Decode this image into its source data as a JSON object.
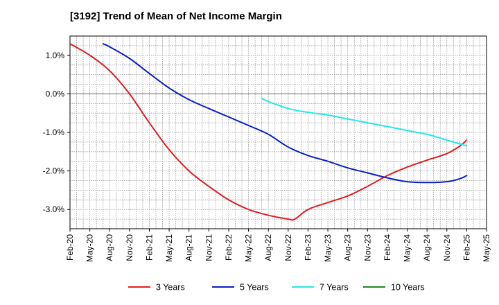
{
  "chart_data": {
    "type": "line",
    "title": "[3192]  Trend of Mean of Net Income Margin",
    "xlabel": "",
    "ylabel": "",
    "ylim": [
      -3.5,
      1.5
    ],
    "yticks": [
      1.0,
      0.0,
      -1.0,
      -2.0,
      -3.0
    ],
    "ytick_labels": [
      "1.0%",
      "0.0%",
      "-1.0%",
      "-2.0%",
      "-3.0%"
    ],
    "x_range": [
      "2020-02",
      "2025-05"
    ],
    "x_tick_labels": [
      "Feb-20",
      "May-20",
      "Aug-20",
      "Nov-20",
      "Feb-21",
      "May-21",
      "Aug-21",
      "Nov-21",
      "Feb-22",
      "May-22",
      "Aug-22",
      "Nov-22",
      "Feb-23",
      "May-23",
      "Aug-23",
      "Nov-23",
      "Feb-24",
      "May-24",
      "Aug-24",
      "Nov-24",
      "Feb-25",
      "May-25"
    ],
    "grid": true,
    "legend_position": "bottom",
    "series": [
      {
        "name": "3 Years",
        "color": "#e31a1c",
        "x": [
          "2020-02",
          "2020-05",
          "2020-08",
          "2020-11",
          "2021-02",
          "2021-05",
          "2021-08",
          "2021-11",
          "2022-02",
          "2022-05",
          "2022-08",
          "2022-11",
          "2022-12",
          "2023-02",
          "2023-05",
          "2023-08",
          "2023-11",
          "2024-02",
          "2024-05",
          "2024-08",
          "2024-11",
          "2025-01",
          "2025-02"
        ],
        "values": [
          1.3,
          1.0,
          0.6,
          0.0,
          -0.75,
          -1.45,
          -2.0,
          -2.4,
          -2.75,
          -3.0,
          -3.15,
          -3.25,
          -3.25,
          -3.0,
          -2.82,
          -2.65,
          -2.4,
          -2.12,
          -1.9,
          -1.72,
          -1.55,
          -1.35,
          -1.2
        ]
      },
      {
        "name": "5 Years",
        "color": "#0a1ec8",
        "x": [
          "2020-07",
          "2020-08",
          "2020-11",
          "2021-02",
          "2021-05",
          "2021-08",
          "2021-11",
          "2022-02",
          "2022-05",
          "2022-08",
          "2022-11",
          "2023-02",
          "2023-05",
          "2023-08",
          "2023-11",
          "2024-02",
          "2024-05",
          "2024-08",
          "2024-11",
          "2025-01",
          "2025-02"
        ],
        "values": [
          1.3,
          1.22,
          0.92,
          0.53,
          0.15,
          -0.15,
          -0.38,
          -0.6,
          -0.82,
          -1.05,
          -1.38,
          -1.6,
          -1.75,
          -1.92,
          -2.05,
          -2.18,
          -2.28,
          -2.3,
          -2.28,
          -2.2,
          -2.12
        ]
      },
      {
        "name": "7 Years",
        "color": "#22e8e8",
        "x": [
          "2022-07",
          "2022-08",
          "2022-11",
          "2023-02",
          "2023-05",
          "2023-08",
          "2023-11",
          "2024-02",
          "2024-05",
          "2024-08",
          "2024-11",
          "2025-01",
          "2025-02"
        ],
        "values": [
          -0.12,
          -0.2,
          -0.38,
          -0.48,
          -0.55,
          -0.65,
          -0.75,
          -0.85,
          -0.95,
          -1.05,
          -1.2,
          -1.3,
          -1.35
        ]
      },
      {
        "name": "10 Years",
        "color": "#1b8a1b",
        "x": [],
        "values": []
      }
    ]
  }
}
